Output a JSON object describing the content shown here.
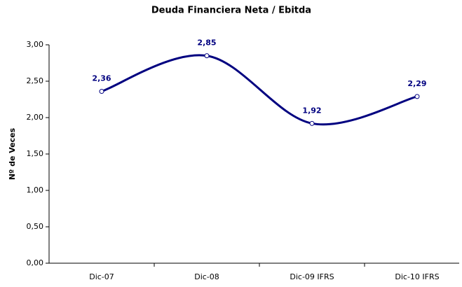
{
  "chart_data": {
    "type": "line",
    "title": "Deuda Financiera Neta / Ebitda",
    "y_label": "Nº de Veces",
    "categories": [
      "Dic-07",
      "Dic-08",
      "Dic-09 IFRS",
      "Dic-10 IFRS"
    ],
    "values": [
      2.36,
      2.85,
      1.92,
      2.29
    ],
    "value_labels": [
      "2,36",
      "2,85",
      "1,92",
      "2,29"
    ],
    "color": "#000080",
    "smooth": true,
    "grid": false,
    "ylim": [
      0,
      3
    ],
    "yticks": [
      {
        "value": 0,
        "label": "0,00"
      },
      {
        "value": 0.5,
        "label": "0,50"
      },
      {
        "value": 1,
        "label": "1,00"
      },
      {
        "value": 1.5,
        "label": "1,50"
      },
      {
        "value": 2,
        "label": "2,00"
      },
      {
        "value": 2.5,
        "label": "2,50"
      },
      {
        "value": 3,
        "label": "3,00"
      }
    ]
  }
}
